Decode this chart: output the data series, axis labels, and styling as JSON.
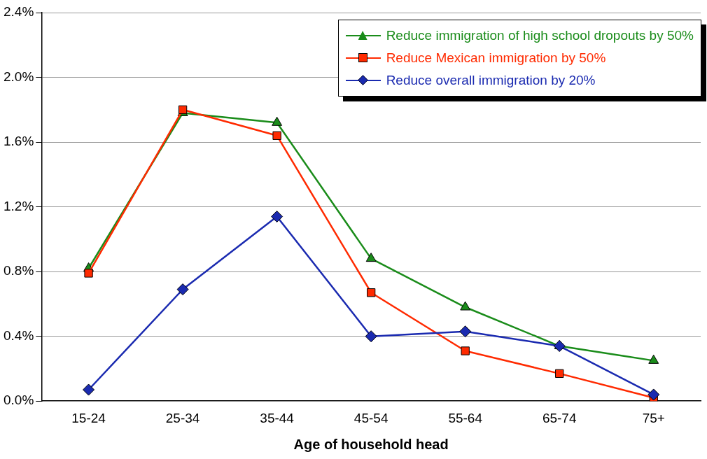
{
  "chart_data": {
    "type": "line",
    "xlabel": "Age of household head",
    "categories": [
      "15-24",
      "25-34",
      "35-44",
      "45-54",
      "55-64",
      "65-74",
      "75+"
    ],
    "series": [
      {
        "name": "Reduce immigration of high school dropouts by 50%",
        "color": "#1a8c1a",
        "marker": "triangle",
        "values": [
          0.82,
          1.78,
          1.72,
          0.88,
          0.58,
          0.34,
          0.25
        ]
      },
      {
        "name": "Reduce Mexican immigration by 50%",
        "color": "#ff2a00",
        "marker": "square",
        "values": [
          0.79,
          1.8,
          1.64,
          0.67,
          0.31,
          0.17,
          0.02
        ]
      },
      {
        "name": "Reduce overall immigration by 20%",
        "color": "#1a2ab0",
        "marker": "diamond",
        "values": [
          0.07,
          0.69,
          1.14,
          0.4,
          0.43,
          0.34,
          0.04
        ]
      }
    ],
    "ylim": [
      0,
      2.4
    ],
    "yticks": [
      {
        "value": 0,
        "label": "0.0%"
      },
      {
        "value": 0.4,
        "label": "0.4%"
      },
      {
        "value": 0.8,
        "label": "0.8%"
      },
      {
        "value": 1.2,
        "label": "1.2%"
      },
      {
        "value": 1.6,
        "label": "1.6%"
      },
      {
        "value": 2.0,
        "label": "2.0%"
      },
      {
        "value": 2.4,
        "label": "2.4%"
      }
    ],
    "grid": "y",
    "legend": "top right",
    "line_style": "solid"
  }
}
